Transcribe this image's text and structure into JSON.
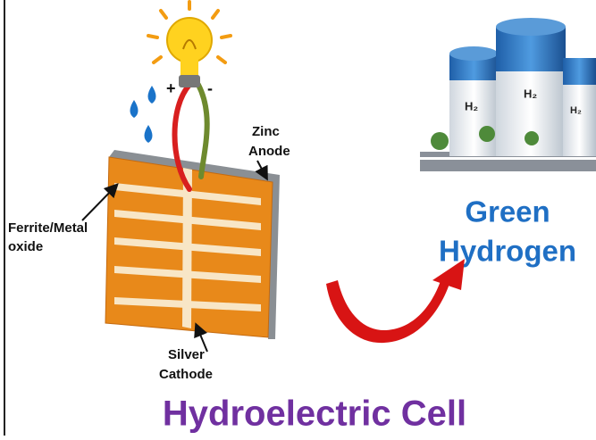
{
  "labels": {
    "zinc_anode": [
      "Zinc",
      "Anode"
    ],
    "ferrite": [
      "Ferrite/Metal",
      "oxide"
    ],
    "silver_cathode": [
      "Silver",
      "Cathode"
    ],
    "plus": "+",
    "minus": "-",
    "green_hydrogen": [
      "Green",
      "Hydrogen"
    ],
    "tanks": [
      "H₂",
      "H₂",
      "H₂"
    ]
  },
  "title": "Hydroelectric Cell"
}
